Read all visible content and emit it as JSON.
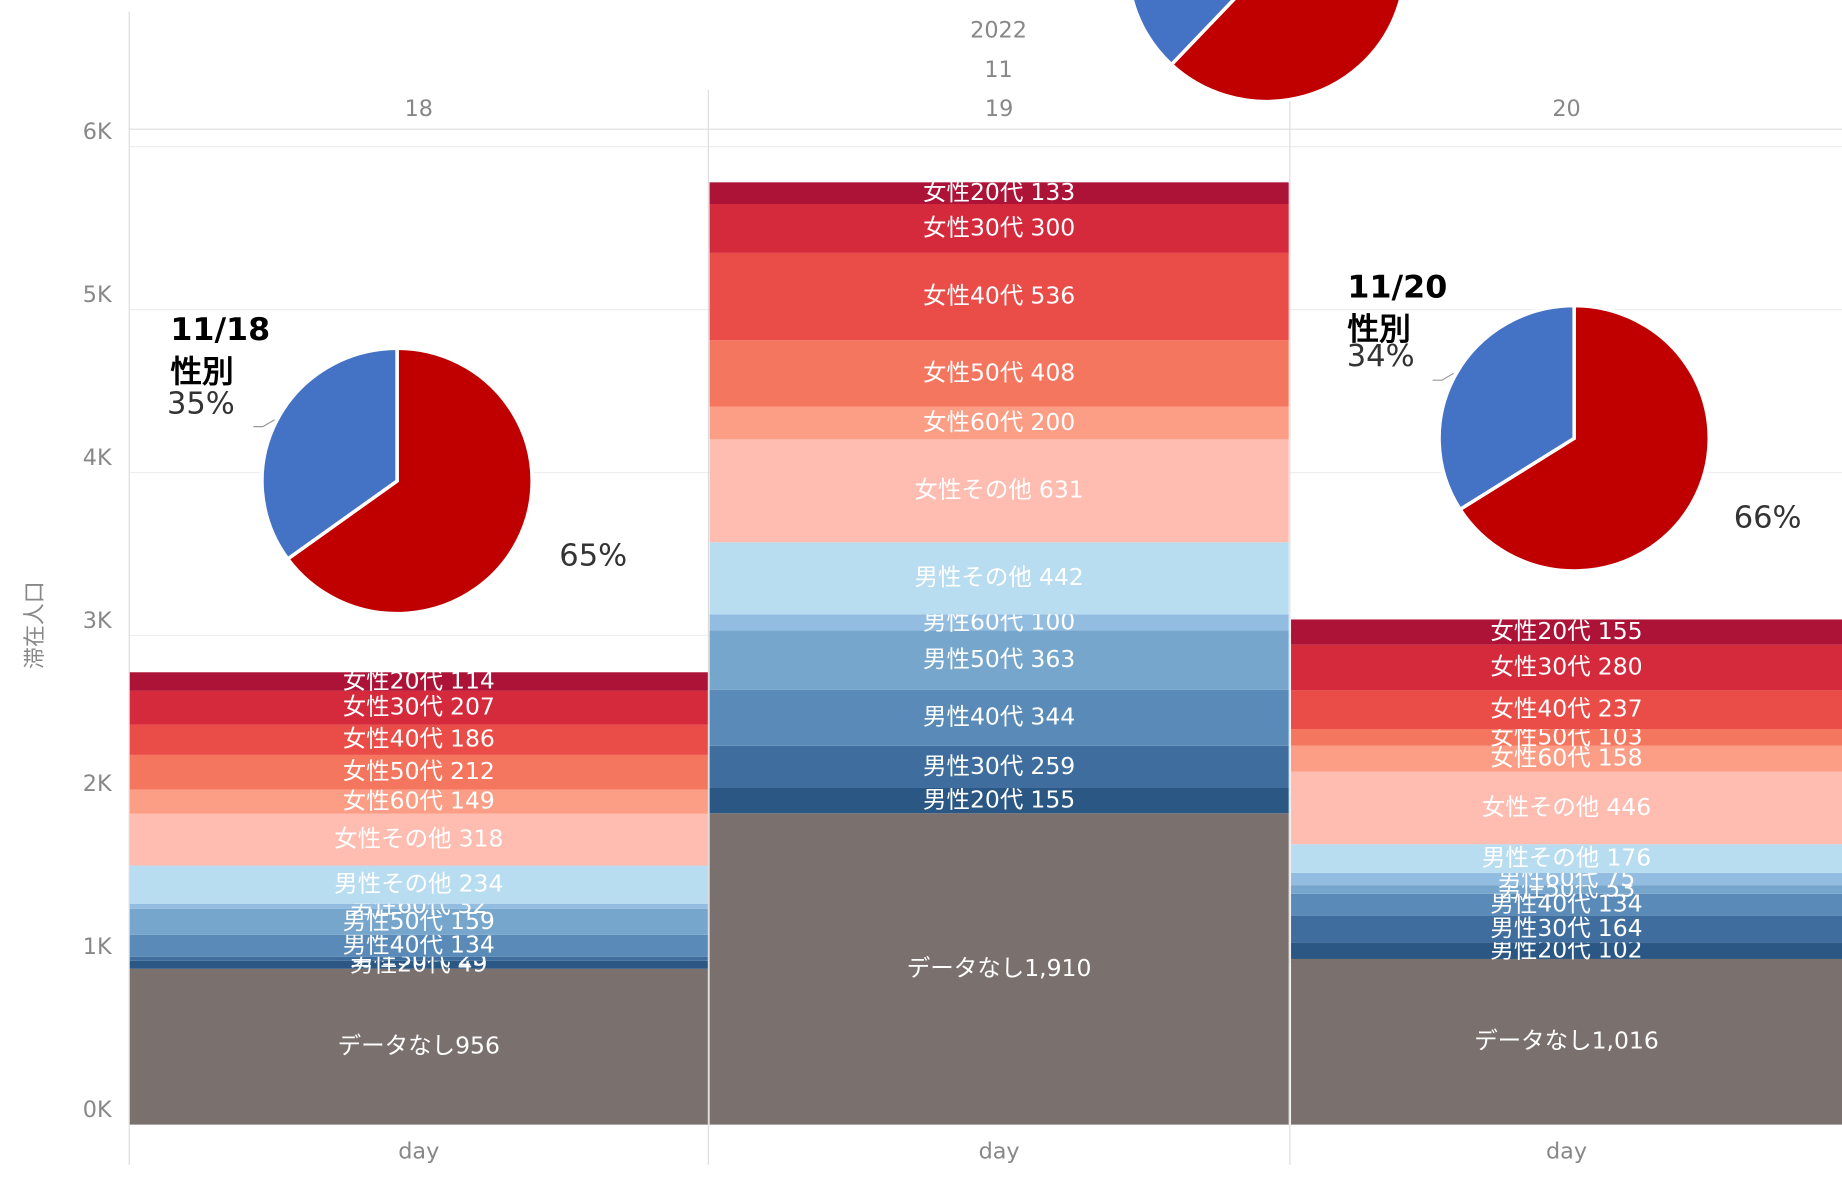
{
  "chart_data": [
    {
      "type": "bar",
      "stacked": true,
      "y_label": "滞在人口",
      "header": [
        "2022",
        "11"
      ],
      "x_label": "day",
      "categories": [
        "18",
        "19",
        "20"
      ],
      "ylim": [
        0,
        6100
      ],
      "yticks": [
        {
          "value": 0,
          "label": "0K"
        },
        {
          "value": 1000,
          "label": "1K"
        },
        {
          "value": 2000,
          "label": "2K"
        },
        {
          "value": 3000,
          "label": "3K"
        },
        {
          "value": 4000,
          "label": "4K"
        },
        {
          "value": 5000,
          "label": "5K"
        },
        {
          "value": 6000,
          "label": "6K"
        }
      ],
      "grid": true,
      "series": [
        {
          "name": "データなし",
          "color": "#7a706d",
          "values": [
            956,
            1910,
            1016
          ],
          "value_labels": [
            "956",
            "1,910",
            "1,016"
          ]
        },
        {
          "name": "男性20代",
          "color": "#2a5783",
          "values": [
            49,
            155,
            102
          ]
        },
        {
          "name": "男性30代",
          "color": "#3f6e9e",
          "values": [
            25,
            259,
            164
          ]
        },
        {
          "name": "男性40代",
          "color": "#5a8bb8",
          "values": [
            134,
            344,
            134
          ]
        },
        {
          "name": "男性50代",
          "color": "#77a6cc",
          "values": [
            159,
            363,
            53
          ]
        },
        {
          "name": "男性60代",
          "color": "#93bde0",
          "values": [
            32,
            100,
            75
          ]
        },
        {
          "name": "男性その他",
          "color": "#b8dcf0",
          "values": [
            234,
            442,
            176
          ]
        },
        {
          "name": "女性その他",
          "color": "#ffbcb0",
          "values": [
            318,
            631,
            446
          ]
        },
        {
          "name": "女性60代",
          "color": "#fc9d85",
          "values": [
            149,
            200,
            158
          ]
        },
        {
          "name": "女性50代",
          "color": "#f5765f",
          "values": [
            212,
            408,
            103
          ]
        },
        {
          "name": "女性40代",
          "color": "#ea4c48",
          "values": [
            186,
            536,
            237
          ]
        },
        {
          "name": "女性30代",
          "color": "#d42a3c",
          "values": [
            207,
            300,
            280
          ]
        },
        {
          "name": "女性20代",
          "color": "#ad1237",
          "values": [
            114,
            133,
            155
          ]
        }
      ]
    },
    {
      "type": "pie",
      "title": [
        "11/18",
        "性別"
      ],
      "values": [
        65,
        35
      ],
      "value_labels": [
        "65%",
        "35%"
      ],
      "colors": [
        "#c00000",
        "#4472c4"
      ]
    },
    {
      "type": "pie",
      "title": [
        "11/20",
        "性別"
      ],
      "values": [
        66,
        34
      ],
      "value_labels": [
        "66%",
        "34%"
      ],
      "colors": [
        "#c00000",
        "#4472c4"
      ]
    },
    {
      "type": "pie",
      "values": [
        62,
        38
      ],
      "colors": [
        "#c00000",
        "#4472c4"
      ]
    }
  ]
}
